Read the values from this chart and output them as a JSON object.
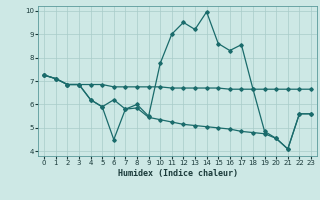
{
  "xlabel": "Humidex (Indice chaleur)",
  "xlim": [
    -0.5,
    23.5
  ],
  "ylim": [
    3.8,
    10.2
  ],
  "xticks": [
    0,
    1,
    2,
    3,
    4,
    5,
    6,
    7,
    8,
    9,
    10,
    11,
    12,
    13,
    14,
    15,
    16,
    17,
    18,
    19,
    20,
    21,
    22,
    23
  ],
  "yticks": [
    4,
    5,
    6,
    7,
    8,
    9,
    10
  ],
  "bg_color": "#cde8e5",
  "grid_color": "#a8ccc9",
  "line_color": "#1a6b6b",
  "line1_x": [
    0,
    1,
    2,
    3,
    4,
    5,
    6,
    7,
    8,
    9,
    10,
    11,
    12,
    13,
    14,
    15,
    16,
    17,
    18,
    19,
    20,
    21,
    22,
    23
  ],
  "line1_y": [
    7.25,
    7.1,
    6.85,
    6.85,
    6.85,
    6.85,
    6.75,
    6.75,
    6.75,
    6.75,
    6.75,
    6.7,
    6.7,
    6.7,
    6.7,
    6.7,
    6.65,
    6.65,
    6.65,
    6.65,
    6.65,
    6.65,
    6.65,
    6.65
  ],
  "line2_x": [
    0,
    1,
    2,
    3,
    4,
    5,
    6,
    7,
    8,
    9,
    10,
    11,
    12,
    13,
    14,
    15,
    16,
    17,
    18,
    19,
    20,
    21,
    22,
    23
  ],
  "line2_y": [
    7.25,
    7.1,
    6.85,
    6.85,
    6.2,
    5.9,
    4.5,
    5.8,
    6.0,
    5.5,
    7.75,
    9.0,
    9.5,
    9.2,
    9.95,
    8.6,
    8.3,
    8.55,
    6.65,
    4.85,
    4.55,
    4.1,
    5.6,
    5.6
  ],
  "line3_x": [
    0,
    1,
    2,
    3,
    4,
    5,
    6,
    7,
    8,
    9,
    10,
    11,
    12,
    13,
    14,
    15,
    16,
    17,
    18,
    19,
    20,
    21,
    22,
    23
  ],
  "line3_y": [
    7.25,
    7.1,
    6.85,
    6.85,
    6.2,
    5.9,
    6.2,
    5.8,
    5.85,
    5.45,
    5.35,
    5.25,
    5.15,
    5.1,
    5.05,
    5.0,
    4.95,
    4.85,
    4.8,
    4.75,
    4.55,
    4.1,
    5.6,
    5.6
  ]
}
